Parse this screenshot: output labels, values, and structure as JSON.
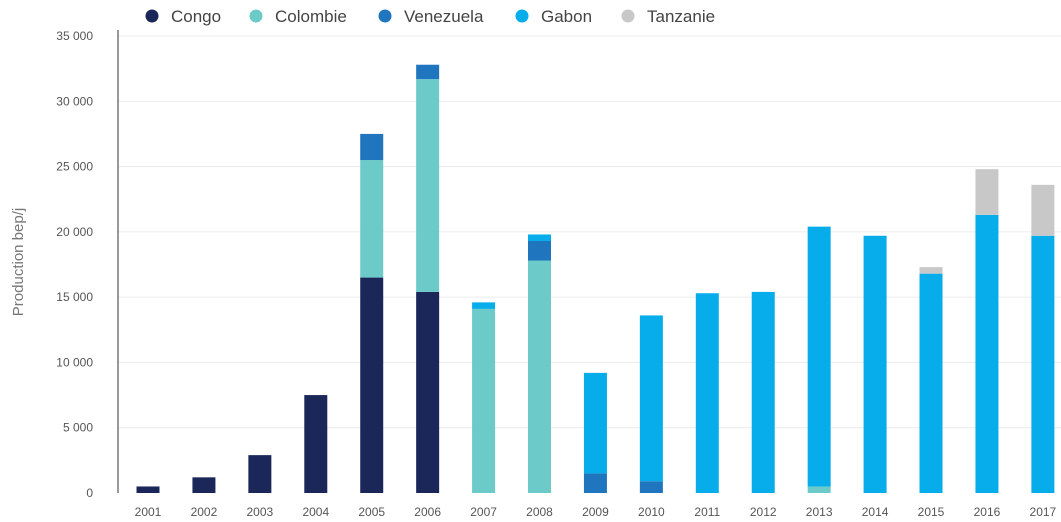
{
  "chart_data": {
    "type": "bar",
    "stacked": true,
    "ylabel": "Production bep/j",
    "xlabel": "",
    "ylim": [
      0,
      35000
    ],
    "y_ticks": [
      0,
      5000,
      10000,
      15000,
      20000,
      25000,
      30000,
      35000
    ],
    "y_tick_labels": [
      "0",
      "5 000",
      "10 000",
      "15 000",
      "20 000",
      "25 000",
      "30 000",
      "35 000"
    ],
    "grid": true,
    "legend_position": "top",
    "categories": [
      "2001",
      "2002",
      "2003",
      "2004",
      "2005",
      "2006",
      "2007",
      "2008",
      "2009",
      "2010",
      "2011",
      "2012",
      "2013",
      "2014",
      "2015",
      "2016",
      "2017"
    ],
    "series": [
      {
        "name": "Congo",
        "color": "#1c2759",
        "values": [
          500,
          1200,
          2900,
          7500,
          16500,
          15400,
          0,
          0,
          0,
          0,
          0,
          0,
          0,
          0,
          0,
          0,
          0
        ]
      },
      {
        "name": "Colombie",
        "color": "#6ccac9",
        "values": [
          0,
          0,
          0,
          0,
          9000,
          16300,
          14100,
          17800,
          0,
          0,
          0,
          0,
          500,
          0,
          0,
          0,
          0
        ]
      },
      {
        "name": "Venezuela",
        "color": "#1f75be",
        "values": [
          0,
          0,
          0,
          0,
          2000,
          1100,
          0,
          1500,
          1500,
          900,
          0,
          0,
          0,
          0,
          0,
          0,
          0
        ]
      },
      {
        "name": "Gabon",
        "color": "#06adea",
        "values": [
          0,
          0,
          0,
          0,
          0,
          0,
          500,
          500,
          7700,
          12700,
          15300,
          15400,
          19900,
          19700,
          16800,
          21300,
          19700
        ]
      },
      {
        "name": "Tanzanie",
        "color": "#c8c8c8",
        "values": [
          0,
          0,
          0,
          0,
          0,
          0,
          0,
          0,
          0,
          0,
          0,
          0,
          0,
          0,
          500,
          3500,
          3900
        ]
      }
    ]
  }
}
